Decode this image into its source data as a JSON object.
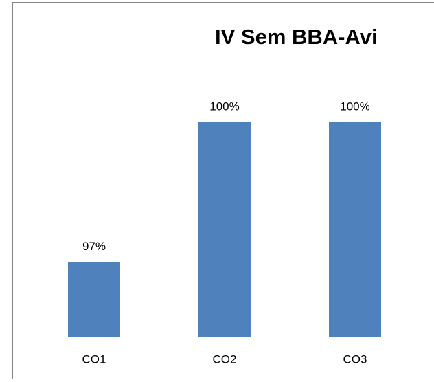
{
  "chart_data": {
    "type": "bar",
    "title": "IV Sem BBA-Avi",
    "categories": [
      "CO1",
      "CO2",
      "CO3"
    ],
    "values": [
      97,
      100,
      100
    ],
    "value_labels": [
      "97%",
      "100%",
      "100%"
    ],
    "color": "#4f81bd",
    "ylim": [
      95.4,
      100.5
    ]
  }
}
